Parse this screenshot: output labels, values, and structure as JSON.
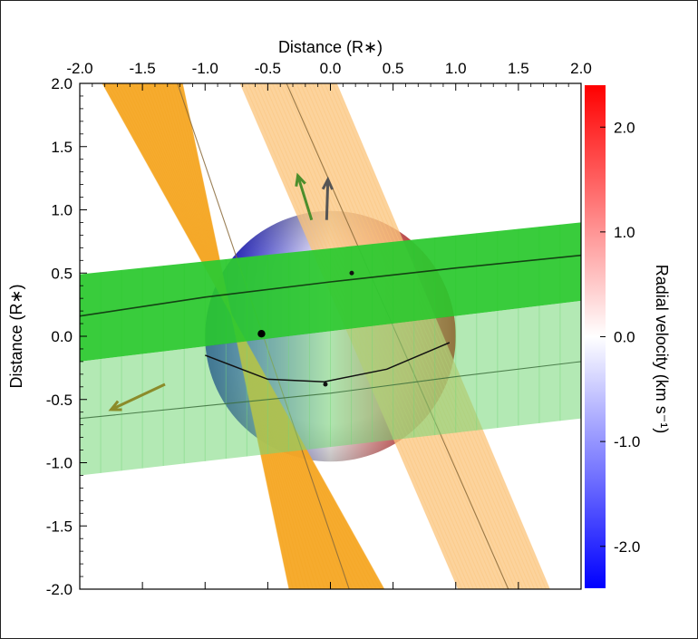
{
  "chart_data": {
    "type": "scatter",
    "title": "",
    "x_axis": {
      "label": "Distance (R∗)",
      "position": "top",
      "range": [
        -2.0,
        2.0
      ],
      "ticks": [
        -2.0,
        -1.5,
        -1.0,
        -0.5,
        0.0,
        0.5,
        1.0,
        1.5,
        2.0
      ],
      "tick_labels": [
        "-2.0",
        "-1.5",
        "-1.0",
        "-0.5",
        "0.0",
        "0.5",
        "1.0",
        "1.5",
        "2.0"
      ]
    },
    "y_axis": {
      "label": "Distance (R∗)",
      "range": [
        -2.0,
        2.0
      ],
      "ticks": [
        -2.0,
        -1.5,
        -1.0,
        -0.5,
        0.0,
        0.5,
        1.0,
        1.5,
        2.0
      ],
      "tick_labels": [
        "-2.0",
        "-1.5",
        "-1.0",
        "-0.5",
        "0.0",
        "0.5",
        "1.0",
        "1.5",
        "2.0"
      ]
    },
    "colorbar": {
      "label": "Radial velocity (km s⁻¹)",
      "range": [
        -2.4,
        2.4
      ],
      "ticks": [
        -2.0,
        -1.0,
        0.0,
        1.0,
        2.0
      ],
      "tick_labels": [
        "-2.0",
        "-1.0",
        "0.0",
        "1.0",
        "2.0"
      ],
      "colors": [
        "#0000ff",
        "#ffffff",
        "#ff0000"
      ]
    },
    "star": {
      "center": [
        0.0,
        0.0
      ],
      "radius": 1.0,
      "equator": [
        [
          -1.0,
          -0.15
        ],
        [
          -0.5,
          -0.34
        ],
        [
          -0.05,
          -0.36
        ],
        [
          0.45,
          -0.26
        ],
        [
          0.95,
          -0.05
        ]
      ],
      "pole_dot": [
        -0.55,
        0.02
      ]
    },
    "bands": [
      {
        "name": "",
        "color": "#f5a623",
        "opacity": 0.95,
        "polygon": [
          [
            -1.82,
            2.0
          ],
          [
            -1.18,
            2.0
          ],
          [
            -0.33,
            -2.0
          ],
          [
            0.43,
            -2.0
          ]
        ],
        "center_line": [
          [
            -1.22,
            2.0
          ],
          [
            0.15,
            -2.0
          ]
        ]
      },
      {
        "name": "",
        "color": "#fbc47b",
        "opacity": 0.75,
        "polygon": [
          [
            -0.72,
            2.0
          ],
          [
            0.05,
            2.0
          ],
          [
            1.75,
            -2.0
          ],
          [
            1.02,
            -2.0
          ]
        ],
        "center_line": [
          [
            -0.35,
            2.0
          ],
          [
            1.42,
            -2.0
          ]
        ]
      },
      {
        "name": "",
        "color": "#2ec931",
        "opacity": 0.95,
        "polygon": [
          [
            -2.0,
            0.49
          ],
          [
            2.0,
            0.9
          ],
          [
            2.0,
            0.28
          ],
          [
            -2.0,
            -0.2
          ]
        ],
        "center_line": [
          [
            -2.0,
            0.16
          ],
          [
            -1.0,
            0.31
          ],
          [
            0.0,
            0.43
          ],
          [
            1.0,
            0.54
          ],
          [
            2.0,
            0.64
          ]
        ]
      },
      {
        "name": "",
        "color": "#74d777",
        "opacity": 0.55,
        "polygon": [
          [
            -2.0,
            -0.2
          ],
          [
            2.0,
            0.28
          ],
          [
            2.0,
            -0.65
          ],
          [
            -2.0,
            -1.1
          ]
        ],
        "center_line": [
          [
            -2.0,
            -0.65
          ],
          [
            -1.0,
            -0.55
          ],
          [
            0.0,
            -0.45
          ],
          [
            1.0,
            -0.32
          ],
          [
            2.0,
            -0.2
          ]
        ]
      }
    ],
    "arrows": [
      {
        "color": "#4c8e2c",
        "from": [
          -0.15,
          0.92
        ],
        "to": [
          -0.26,
          1.27
        ]
      },
      {
        "color": "#555555",
        "from": [
          -0.03,
          0.92
        ],
        "to": [
          -0.02,
          1.24
        ]
      },
      {
        "color": "#8b8b2a",
        "from": [
          -1.32,
          -0.38
        ],
        "to": [
          -1.75,
          -0.58
        ]
      }
    ],
    "markers": [
      [
        0.17,
        0.5
      ],
      [
        -0.04,
        -0.38
      ]
    ],
    "grid": false
  }
}
